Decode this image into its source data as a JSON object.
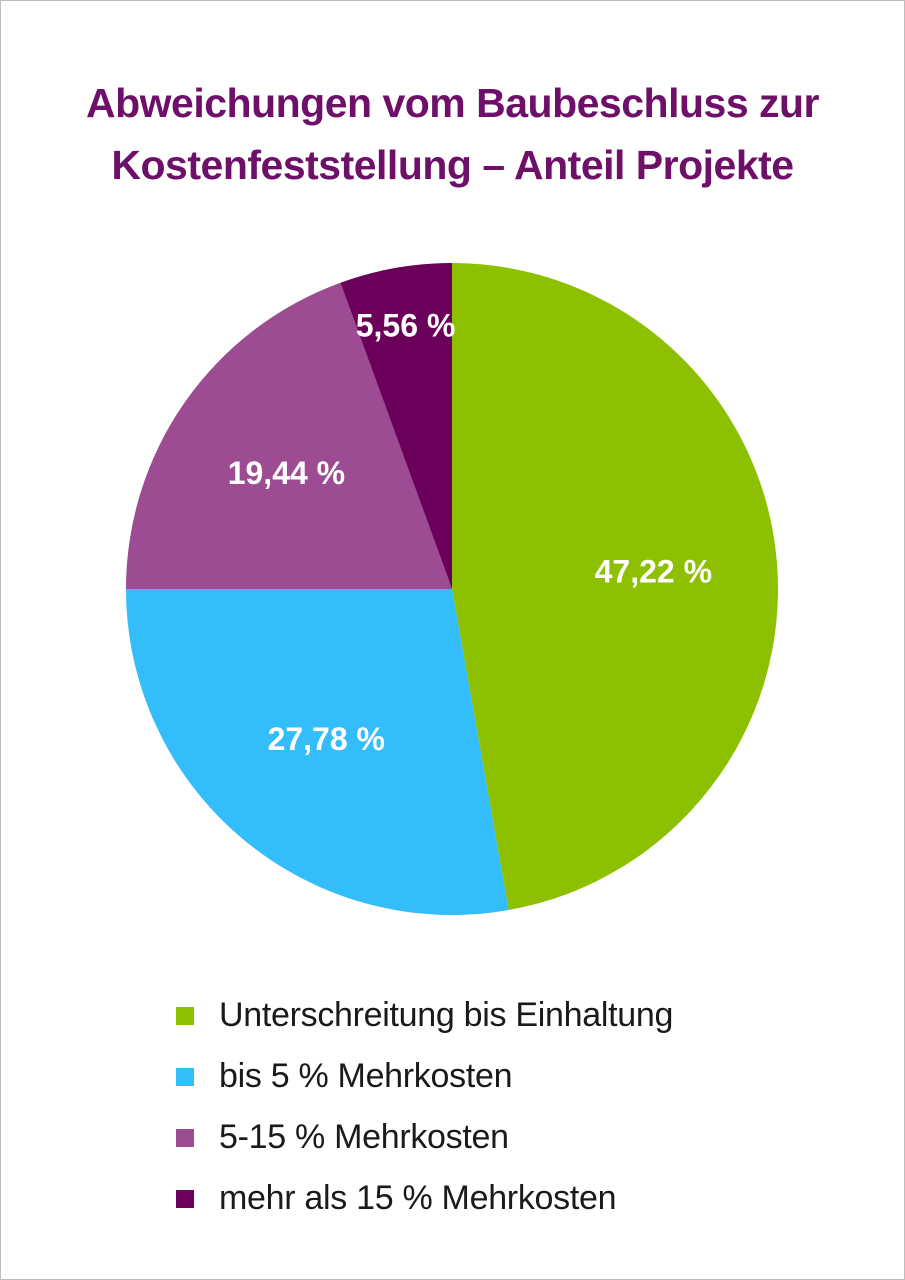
{
  "chart_data": {
    "type": "pie",
    "title": "Abweichungen vom Baubeschluss zur Kostenfeststellung – Anteil Projekte",
    "title_lines": [
      "Abweichungen vom Baubeschluss zur",
      "Kostenfeststellung – Anteil Projekte"
    ],
    "unit": "%",
    "slices": [
      {
        "name": "Unterschreitung bis Einhaltung",
        "value": 47.22,
        "label": "47,22 %",
        "color": "#8cc000"
      },
      {
        "name": "bis 5 % Mehrkosten",
        "value": 27.78,
        "label": "27,78 %",
        "color": "#33bdfa"
      },
      {
        "name": "5-15 % Mehrkosten",
        "value": 19.44,
        "label": "19,44 %",
        "color": "#9d4b93"
      },
      {
        "name": "mehr als 15 % Mehrkosten",
        "value": 5.56,
        "label": "5,56 %",
        "color": "#6a005a"
      }
    ],
    "start_angle": "12 o'clock",
    "direction": "clockwise",
    "legend_position": "bottom-left"
  },
  "colors": {
    "title": "#6e1069",
    "slice_label": "#ffffff",
    "legend_text": "#1a1a1a"
  }
}
